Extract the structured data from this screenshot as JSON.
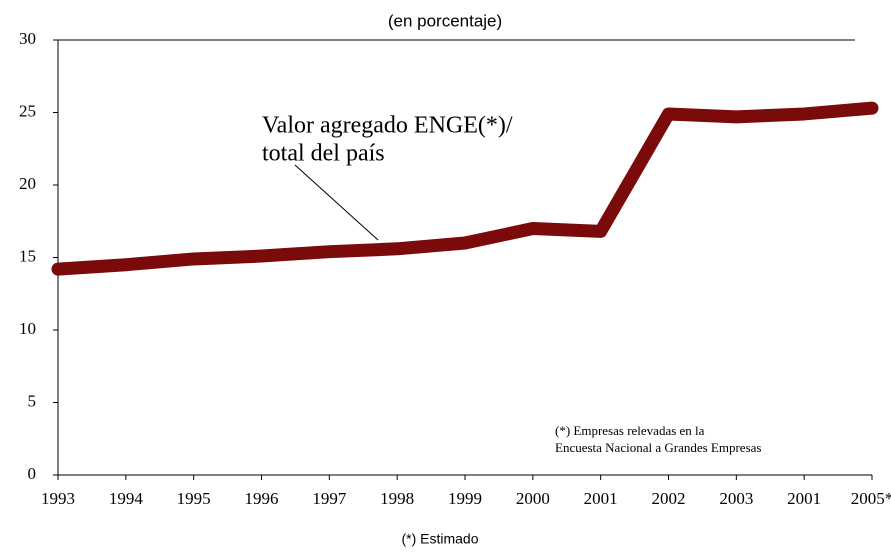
{
  "chart_data": {
    "type": "line",
    "subtitle": "(en porcentaje)",
    "categories": [
      "1993",
      "1994",
      "1995",
      "1996",
      "1997",
      "1998",
      "1999",
      "2000",
      "2001",
      "2002",
      "2003",
      "2001",
      "2005*"
    ],
    "series": [
      {
        "name": "Valor agregado ENGE(*)/ total del país",
        "color": "#7b0a0a",
        "values": [
          14.2,
          14.5,
          14.9,
          15.1,
          15.4,
          15.6,
          16.0,
          17.0,
          16.8,
          24.9,
          24.7,
          24.9,
          25.3
        ]
      }
    ],
    "ylim": [
      0,
      30
    ],
    "yticks": [
      0,
      5,
      10,
      15,
      20,
      25,
      30
    ],
    "annotations": [
      "Valor agregado ENGE(*)/",
      "total del país"
    ],
    "note": [
      "(*) Empresas relevadas en la",
      "Encuesta Nacional a Grandes Empresas"
    ],
    "footnote": "(*) Estimado"
  }
}
